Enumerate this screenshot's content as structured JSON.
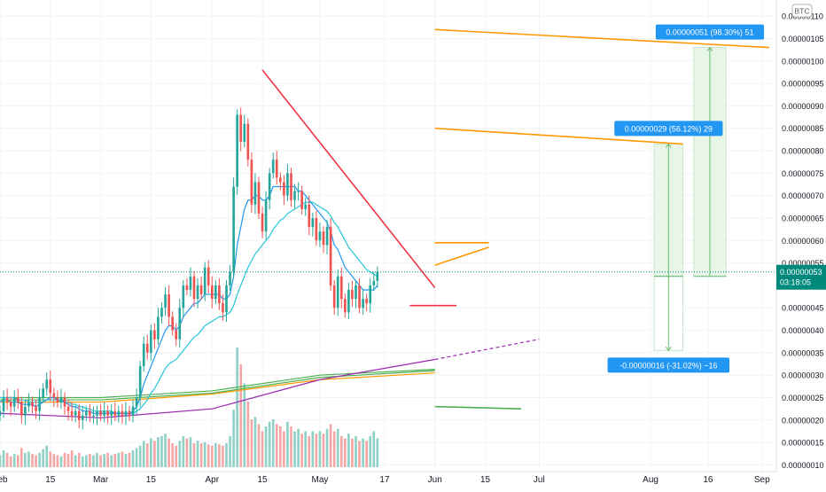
{
  "currency_badge": "BTC",
  "colors": {
    "up": "#26a69a",
    "down": "#ef5350",
    "up_vol": "#8fd1c7",
    "down_vol": "#f4a6a4",
    "ema_fast": "#2196f3",
    "ema_slow": "#26c6da",
    "ma_purple": "#9c27b0",
    "ma_green": "#4caf50",
    "ma_orange": "#ff9800",
    "trend_red": "#f23645",
    "channel_orange": "#ff9800",
    "label_blue": "#2196f3",
    "box_green": "#c8e6c9",
    "price_tag": "#00897b"
  },
  "chart_data": {
    "type": "candlestick",
    "xlabel": "",
    "ylabel": "",
    "x_tick_labels": [
      "Feb",
      "15",
      "Mar",
      "15",
      "Apr",
      "15",
      "May",
      "17",
      "Jun",
      "15",
      "Jul",
      "Aug",
      "16",
      "Sep"
    ],
    "x_tick_days": [
      0,
      14,
      28,
      42,
      59,
      73,
      89,
      107,
      121,
      135,
      150,
      181,
      197,
      212
    ],
    "y_tick_labels": [
      "0.00000110",
      "0.00000105",
      "0.00000100",
      "0.00000095",
      "0.00000090",
      "0.00000085",
      "0.00000080",
      "0.00000075",
      "0.00000070",
      "0.00000065",
      "0.00000060",
      "0.00000055",
      "0.00000045",
      "0.00000040",
      "0.00000035",
      "0.00000030",
      "0.00000025",
      "0.00000020",
      "0.00000015",
      "0.00000010"
    ],
    "y_tick_values": [
      1.1,
      1.05,
      1.0,
      0.95,
      0.9,
      0.85,
      0.8,
      0.75,
      0.7,
      0.65,
      0.6,
      0.55,
      0.45,
      0.4,
      0.35,
      0.3,
      0.25,
      0.2,
      0.15,
      0.1
    ],
    "y_unit_note": "values in units of 1e-6 BTC",
    "ylim": [
      0.095,
      1.12
    ],
    "last_price_label": "0.00000053",
    "last_price": 0.53,
    "countdown": "03:18:05",
    "closes": [
      0.22,
      0.25,
      0.24,
      0.23,
      0.25,
      0.24,
      0.21,
      0.23,
      0.24,
      0.23,
      0.22,
      0.25,
      0.27,
      0.29,
      0.26,
      0.25,
      0.24,
      0.25,
      0.23,
      0.22,
      0.21,
      0.22,
      0.2,
      0.21,
      0.22,
      0.21,
      0.21,
      0.22,
      0.21,
      0.22,
      0.21,
      0.22,
      0.21,
      0.22,
      0.21,
      0.22,
      0.21,
      0.23,
      0.25,
      0.32,
      0.37,
      0.35,
      0.4,
      0.38,
      0.43,
      0.45,
      0.48,
      0.43,
      0.4,
      0.38,
      0.45,
      0.5,
      0.49,
      0.52,
      0.47,
      0.5,
      0.48,
      0.54,
      0.5,
      0.47,
      0.5,
      0.46,
      0.44,
      0.5,
      0.53,
      0.72,
      0.88,
      0.82,
      0.86,
      0.78,
      0.68,
      0.73,
      0.66,
      0.62,
      0.69,
      0.75,
      0.78,
      0.74,
      0.73,
      0.7,
      0.75,
      0.69,
      0.71,
      0.71,
      0.67,
      0.68,
      0.63,
      0.65,
      0.6,
      0.62,
      0.59,
      0.63,
      0.5,
      0.45,
      0.52,
      0.47,
      0.44,
      0.49,
      0.47,
      0.5,
      0.45,
      0.47,
      0.46,
      0.5,
      0.51,
      0.53
    ],
    "volumes": [
      0.1,
      0.14,
      0.12,
      0.09,
      0.11,
      0.1,
      0.16,
      0.12,
      0.13,
      0.11,
      0.1,
      0.12,
      0.15,
      0.18,
      0.13,
      0.11,
      0.1,
      0.09,
      0.12,
      0.11,
      0.14,
      0.1,
      0.12,
      0.09,
      0.1,
      0.11,
      0.1,
      0.12,
      0.1,
      0.11,
      0.12,
      0.1,
      0.11,
      0.12,
      0.13,
      0.11,
      0.12,
      0.14,
      0.16,
      0.18,
      0.22,
      0.2,
      0.24,
      0.22,
      0.25,
      0.26,
      0.28,
      0.24,
      0.2,
      0.18,
      0.22,
      0.26,
      0.24,
      0.25,
      0.2,
      0.22,
      0.2,
      0.21,
      0.19,
      0.18,
      0.2,
      0.19,
      0.18,
      0.2,
      0.26,
      0.48,
      1.0,
      0.86,
      0.7,
      0.55,
      0.4,
      0.42,
      0.36,
      0.3,
      0.34,
      0.38,
      0.4,
      0.36,
      0.34,
      0.3,
      0.38,
      0.34,
      0.3,
      0.32,
      0.28,
      0.3,
      0.26,
      0.3,
      0.28,
      0.3,
      0.28,
      0.32,
      0.36,
      0.3,
      0.32,
      0.26,
      0.24,
      0.28,
      0.24,
      0.26,
      0.22,
      0.24,
      0.22,
      0.26,
      0.3,
      0.24
    ],
    "ema_fast": [
      0.24,
      0.245,
      0.245,
      0.24,
      0.24,
      0.24,
      0.235,
      0.235,
      0.235,
      0.235,
      0.23,
      0.235,
      0.24,
      0.245,
      0.25,
      0.25,
      0.245,
      0.245,
      0.24,
      0.235,
      0.23,
      0.23,
      0.225,
      0.22,
      0.22,
      0.22,
      0.215,
      0.215,
      0.215,
      0.215,
      0.215,
      0.215,
      0.215,
      0.215,
      0.215,
      0.215,
      0.215,
      0.22,
      0.23,
      0.25,
      0.28,
      0.3,
      0.32,
      0.34,
      0.36,
      0.38,
      0.4,
      0.41,
      0.41,
      0.4,
      0.41,
      0.43,
      0.44,
      0.45,
      0.46,
      0.46,
      0.47,
      0.48,
      0.48,
      0.48,
      0.48,
      0.48,
      0.47,
      0.47,
      0.48,
      0.52,
      0.59,
      0.63,
      0.67,
      0.69,
      0.69,
      0.7,
      0.7,
      0.69,
      0.69,
      0.7,
      0.72,
      0.72,
      0.72,
      0.72,
      0.72,
      0.72,
      0.72,
      0.71,
      0.71,
      0.7,
      0.69,
      0.68,
      0.67,
      0.66,
      0.65,
      0.64,
      0.62,
      0.59,
      0.58,
      0.56,
      0.54,
      0.53,
      0.52,
      0.51,
      0.5,
      0.49,
      0.49,
      0.49,
      0.49,
      0.5
    ],
    "ema_slow": [
      0.25,
      0.25,
      0.25,
      0.25,
      0.25,
      0.245,
      0.245,
      0.245,
      0.24,
      0.24,
      0.24,
      0.24,
      0.24,
      0.245,
      0.245,
      0.245,
      0.245,
      0.24,
      0.24,
      0.24,
      0.235,
      0.235,
      0.23,
      0.23,
      0.225,
      0.225,
      0.22,
      0.22,
      0.22,
      0.22,
      0.22,
      0.22,
      0.215,
      0.215,
      0.215,
      0.215,
      0.215,
      0.215,
      0.22,
      0.225,
      0.235,
      0.245,
      0.26,
      0.27,
      0.285,
      0.3,
      0.315,
      0.325,
      0.33,
      0.335,
      0.345,
      0.355,
      0.365,
      0.375,
      0.385,
      0.39,
      0.4,
      0.41,
      0.415,
      0.42,
      0.425,
      0.43,
      0.43,
      0.435,
      0.44,
      0.455,
      0.48,
      0.5,
      0.52,
      0.54,
      0.555,
      0.57,
      0.58,
      0.59,
      0.6,
      0.61,
      0.625,
      0.635,
      0.645,
      0.65,
      0.66,
      0.665,
      0.67,
      0.675,
      0.68,
      0.685,
      0.685,
      0.685,
      0.68,
      0.675,
      0.67,
      0.665,
      0.655,
      0.64,
      0.63,
      0.615,
      0.6,
      0.585,
      0.575,
      0.565,
      0.555,
      0.545,
      0.535,
      0.53,
      0.525,
      0.52
    ],
    "ma_purple": [
      [
        0,
        0.215
      ],
      [
        28,
        0.205
      ],
      [
        59,
        0.225
      ],
      [
        89,
        0.29
      ],
      [
        121,
        0.335
      ],
      [
        150,
        0.38
      ]
    ],
    "ma_green_a": [
      [
        0,
        0.25
      ],
      [
        28,
        0.25
      ],
      [
        59,
        0.265
      ],
      [
        89,
        0.3
      ],
      [
        121,
        0.313
      ]
    ],
    "ma_green_b": [
      [
        0,
        0.245
      ],
      [
        28,
        0.245
      ],
      [
        59,
        0.26
      ],
      [
        89,
        0.295
      ],
      [
        121,
        0.31
      ]
    ],
    "ma_orange": [
      [
        0,
        0.24
      ],
      [
        28,
        0.24
      ],
      [
        59,
        0.258
      ],
      [
        89,
        0.29
      ],
      [
        121,
        0.305
      ]
    ],
    "trendline_red": [
      [
        73,
        0.98
      ],
      [
        121,
        0.495
      ]
    ],
    "support_red": [
      [
        114,
        0.455
      ],
      [
        127,
        0.455
      ]
    ],
    "channel_upper": [
      [
        121,
        1.07
      ],
      [
        214,
        1.03
      ]
    ],
    "channel_mid": [
      [
        121,
        0.85
      ],
      [
        190,
        0.815
      ]
    ],
    "short_orange_a": [
      [
        121,
        0.595
      ],
      [
        136,
        0.595
      ]
    ],
    "short_orange_b": [
      [
        121,
        0.545
      ],
      [
        136,
        0.585
      ]
    ],
    "green_hline": [
      [
        121,
        0.23
      ],
      [
        145,
        0.225
      ]
    ],
    "annotations": [
      {
        "label": "0.00000051 (98.30%) 51",
        "box_from": 0.52,
        "box_to": 1.03,
        "x0": 193,
        "x1": 202
      },
      {
        "label": "0.00000029 (56.12%) 29",
        "box_from": 0.52,
        "box_to": 0.815,
        "x0": 182,
        "x1": 190
      },
      {
        "label": "-0.00000016 (-31.02%) −16",
        "box_from": 0.52,
        "box_to": 0.355,
        "x0": 182,
        "x1": 190
      }
    ]
  }
}
